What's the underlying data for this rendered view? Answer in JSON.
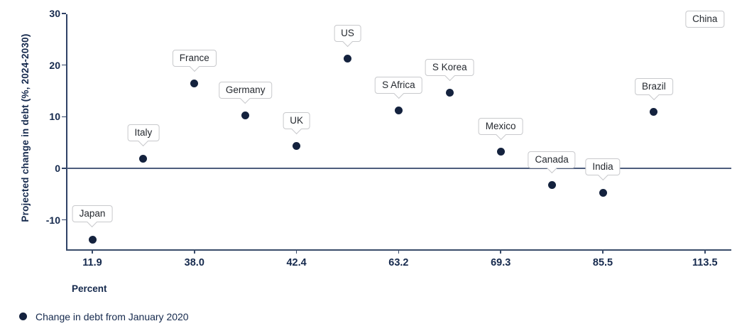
{
  "chart_data": {
    "type": "scatter",
    "title": "",
    "y_axis": {
      "title": "Projected change in debt (%, 2024-2030)",
      "tick_labels": [
        "30",
        "20",
        "10",
        "0",
        "-10"
      ],
      "tick_values": [
        30,
        20,
        10,
        0,
        -10
      ],
      "range": [
        -15.7,
        30
      ],
      "zero_line": true
    },
    "x_axis": {
      "title": "Percent",
      "tick_labels": [
        "11.9",
        "38.0",
        "42.4",
        "63.2",
        "69.3",
        "85.5",
        "113.5"
      ],
      "note": "ordinal axis; one labeled tick under every other country"
    },
    "legend": {
      "marker": "dot-icon",
      "label": "Change in debt from January 2020"
    },
    "points": [
      {
        "label": "Japan",
        "x_tick_label": "11.9",
        "y": -13.8
      },
      {
        "label": "Italy",
        "x_tick_label": null,
        "y": 1.9
      },
      {
        "label": "France",
        "x_tick_label": "38.0",
        "y": 16.4
      },
      {
        "label": "Germany",
        "x_tick_label": null,
        "y": 10.2
      },
      {
        "label": "UK",
        "x_tick_label": "42.4",
        "y": 4.3
      },
      {
        "label": "US",
        "x_tick_label": null,
        "y": 21.2
      },
      {
        "label": "S Africa",
        "x_tick_label": "63.2",
        "y": 11.2
      },
      {
        "label": "S Korea",
        "x_tick_label": null,
        "y": 14.6
      },
      {
        "label": "Mexico",
        "x_tick_label": "69.3",
        "y": 3.2
      },
      {
        "label": "Canada",
        "x_tick_label": null,
        "y": -3.3
      },
      {
        "label": "India",
        "x_tick_label": "85.5",
        "y": -4.7
      },
      {
        "label": "Brazil",
        "x_tick_label": null,
        "y": 10.9
      },
      {
        "label": "China",
        "x_tick_label": "113.5",
        "y": null
      }
    ],
    "colors": {
      "dot": "#14223e",
      "navy_text": "#15294d",
      "axis_line": "#2f4266",
      "zero_line": "#4d5d7d",
      "callout_border": "#c8c9cc",
      "callout_text": "#25292f",
      "background": "#ffffff"
    }
  }
}
